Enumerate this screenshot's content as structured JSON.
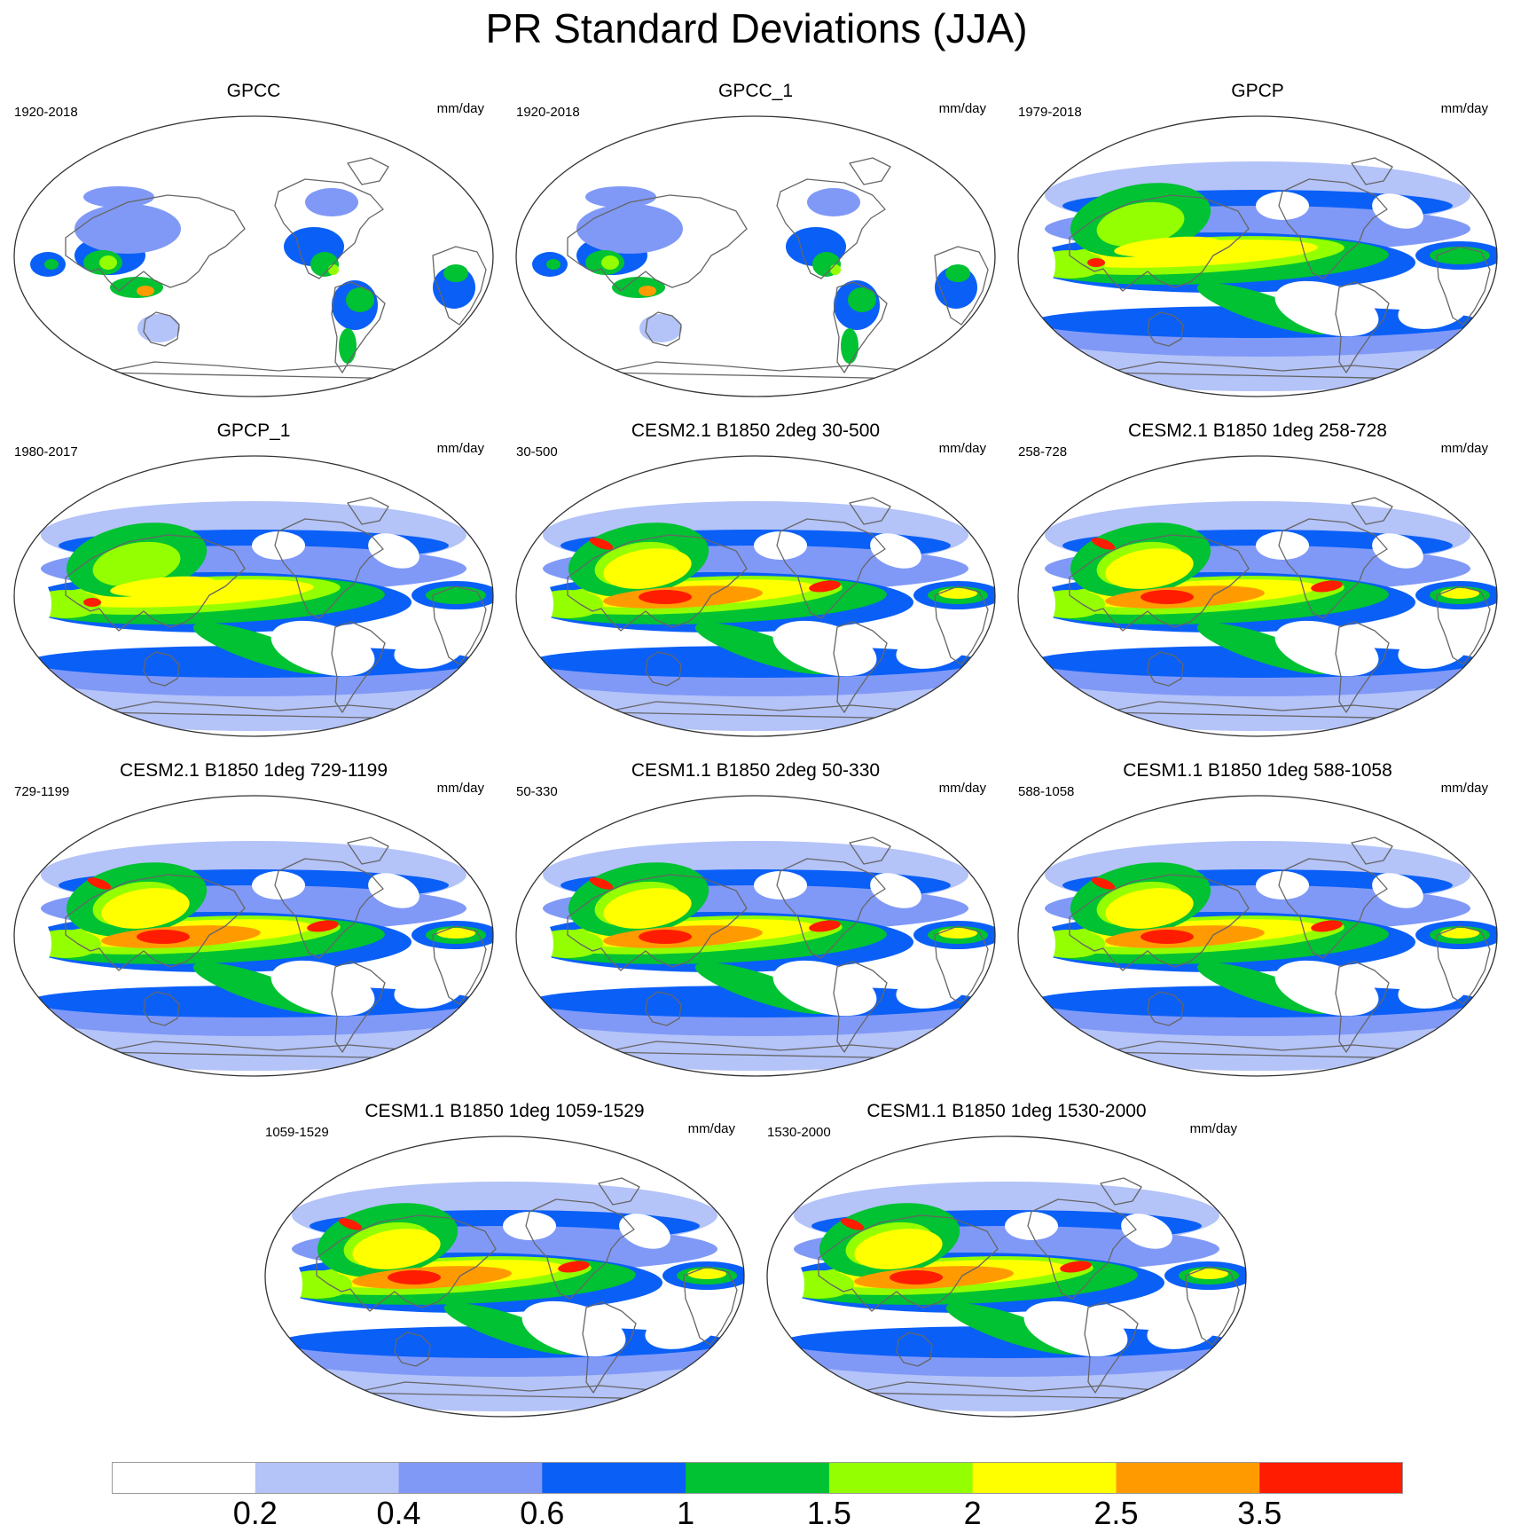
{
  "title": "PR Standard Deviations (JJA)",
  "colorbar": {
    "colors": [
      "#ffffff",
      "#b4c3f8",
      "#8099f7",
      "#0a5ff7",
      "#00c232",
      "#94ff00",
      "#ffff00",
      "#ff9b00",
      "#ff1c00"
    ],
    "labels": [
      "0.2",
      "0.4",
      "0.6",
      "1",
      "1.5",
      "2",
      "2.5",
      "3.5"
    ]
  },
  "panels": [
    {
      "title": "GPCC",
      "period": "1920-2018",
      "units": "mm/day",
      "kind": "land"
    },
    {
      "title": "GPCC_1",
      "period": "1920-2018",
      "units": "mm/day",
      "kind": "land"
    },
    {
      "title": "GPCP",
      "period": "1979-2018",
      "units": "mm/day",
      "kind": "obs"
    },
    {
      "title": "GPCP_1",
      "period": "1980-2017",
      "units": "mm/day",
      "kind": "obs"
    },
    {
      "title": "CESM2.1 B1850 2deg 30-500",
      "period": "30-500",
      "units": "mm/day",
      "kind": "model"
    },
    {
      "title": "CESM2.1 B1850 1deg 258-728",
      "period": "258-728",
      "units": "mm/day",
      "kind": "model"
    },
    {
      "title": "CESM2.1 B1850 1deg 729-1199",
      "period": "729-1199",
      "units": "mm/day",
      "kind": "model"
    },
    {
      "title": "CESM1.1 B1850 2deg 50-330",
      "period": "50-330",
      "units": "mm/day",
      "kind": "model"
    },
    {
      "title": "CESM1.1 B1850 1deg 588-1058",
      "period": "588-1058",
      "units": "mm/day",
      "kind": "model"
    },
    {
      "title": "CESM1.1 B1850 1deg 1059-1529",
      "period": "1059-1529",
      "units": "mm/day",
      "kind": "model"
    },
    {
      "title": "CESM1.1 B1850 1deg 1530-2000",
      "period": "1530-2000",
      "units": "mm/day",
      "kind": "model"
    }
  ]
}
